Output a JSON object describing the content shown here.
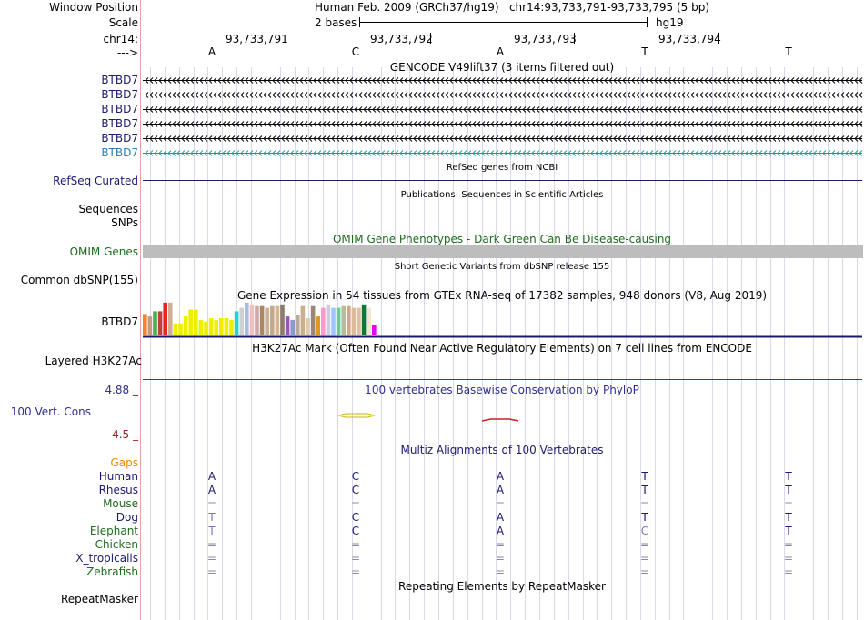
{
  "header": {
    "window_position_label": "Window Position",
    "window_position_value": "Human Feb. 2009 (GRCh37/hg19)   chr14:93,733,791-93,733,795 (5 bp)",
    "scale_label": "Scale",
    "scale_left": "2 bases",
    "scale_right": "hg19",
    "chrom_label": "chr14:",
    "coords": [
      "93,733,791",
      "93,733,792",
      "93,733,793",
      "93,733,794"
    ],
    "strand_label": "--->",
    "bases": [
      "A",
      "C",
      "A",
      "T",
      "T"
    ]
  },
  "gencode": {
    "title": "GENCODE V49lift37 (3 items filtered out)",
    "tracks": [
      "BTBD7",
      "BTBD7",
      "BTBD7",
      "BTBD7",
      "BTBD7",
      "BTBD7"
    ],
    "color_main": "#1b1b70",
    "color_last": "#2c7fb8"
  },
  "refseq": {
    "title": "RefSeq genes from NCBI",
    "label": "RefSeq Curated"
  },
  "publications": {
    "title": "Publications: Sequences in Scientific Articles",
    "label_sequences": "Sequences",
    "label_snps": "SNPs"
  },
  "omim": {
    "title": "OMIM Gene Phenotypes - Dark Green Can Be Disease-causing",
    "label": "OMIM Genes",
    "color": "#1f6b1f"
  },
  "dbsnp": {
    "title": "Short Genetic Variants from dbSNP release 155",
    "label": "Common dbSNP(155)"
  },
  "gtex": {
    "title": "Gene Expression in 54 tissues from GTEx RNA-seq of 17382 samples, 948 donors (V8, Aug 2019)",
    "label": "BTBD7",
    "bars": [
      {
        "v": 0.62,
        "c": "#ff7f2a"
      },
      {
        "v": 0.55,
        "c": "#c79a7a"
      },
      {
        "v": 0.7,
        "c": "#4daf4a"
      },
      {
        "v": 0.7,
        "c": "#c04040"
      },
      {
        "v": 0.95,
        "c": "#ee2222"
      },
      {
        "v": 0.95,
        "c": "#ccb093"
      },
      {
        "v": 0.35,
        "c": "#eeee00"
      },
      {
        "v": 0.35,
        "c": "#eeee00"
      },
      {
        "v": 0.55,
        "c": "#eeee00"
      },
      {
        "v": 0.75,
        "c": "#eeee00"
      },
      {
        "v": 0.75,
        "c": "#eeee00"
      },
      {
        "v": 0.45,
        "c": "#eeee00"
      },
      {
        "v": 0.4,
        "c": "#eeee00"
      },
      {
        "v": 0.5,
        "c": "#eeee00"
      },
      {
        "v": 0.45,
        "c": "#eeee00"
      },
      {
        "v": 0.5,
        "c": "#eeee00"
      },
      {
        "v": 0.5,
        "c": "#eeee00"
      },
      {
        "v": 0.45,
        "c": "#eeee00"
      },
      {
        "v": 0.7,
        "c": "#22d3d3"
      },
      {
        "v": 0.8,
        "c": "#d0d0d0"
      },
      {
        "v": 0.95,
        "c": "#aabbdd"
      },
      {
        "v": 0.9,
        "c": "#f0c0c0"
      },
      {
        "v": 0.85,
        "c": "#ccaaaa"
      },
      {
        "v": 0.85,
        "c": "#aa8866"
      },
      {
        "v": 0.8,
        "c": "#ccb093"
      },
      {
        "v": 0.85,
        "c": "#c2a98f"
      },
      {
        "v": 0.85,
        "c": "#d9b48f"
      },
      {
        "v": 0.9,
        "c": "#8b7d6b"
      },
      {
        "v": 0.55,
        "c": "#9955bb"
      },
      {
        "v": 0.45,
        "c": "#8899cc"
      },
      {
        "v": 0.6,
        "c": "#bbaa99"
      },
      {
        "v": 0.85,
        "c": "#c9b08a"
      },
      {
        "v": 0.5,
        "c": "#e0c8b0"
      },
      {
        "v": 0.85,
        "c": "#998877"
      },
      {
        "v": 0.55,
        "c": "#dd9922"
      },
      {
        "v": 0.8,
        "c": "#ff99cc"
      },
      {
        "v": 0.9,
        "c": "#ccccdd"
      },
      {
        "v": 0.8,
        "c": "#a0c4ff"
      },
      {
        "v": 0.8,
        "c": "#66cc99"
      },
      {
        "v": 0.85,
        "c": "#bbbb99"
      },
      {
        "v": 0.85,
        "c": "#ccaa88"
      },
      {
        "v": 0.8,
        "c": "#ddbb99"
      },
      {
        "v": 0.8,
        "c": "#d9c2a6"
      },
      {
        "v": 0.9,
        "c": "#117733"
      },
      {
        "v": 0.8,
        "c": "#f4e4d4"
      },
      {
        "v": 0.3,
        "c": "#ee00ee"
      }
    ]
  },
  "h3k27ac": {
    "title": "H3K27Ac Mark (Often Found Near Active Regulatory Elements) on 7 cell lines from ENCODE",
    "label": "Layered H3K27Ac"
  },
  "phylop": {
    "title": "100 vertebrates Basewise Conservation by PhyloP",
    "label": "100 Vert. Cons",
    "max_label": "4.88 _",
    "min_label": "-4.5 _",
    "color_pos": "#2f2f8f",
    "color_neg": "#a02020"
  },
  "multiz": {
    "title": "Multiz Alignments of 100 Vertebrates",
    "gaps_label": "Gaps",
    "species": [
      {
        "name": "Human",
        "color": "#1b1b70",
        "bases": [
          "A",
          "C",
          "A",
          "T",
          "T"
        ]
      },
      {
        "name": "Rhesus",
        "color": "#1b1b70",
        "bases": [
          "A",
          "C",
          "A",
          "T",
          "T"
        ]
      },
      {
        "name": "Mouse",
        "color": "#1f6b1f",
        "bases": [
          "=",
          "=",
          "=",
          "=",
          "="
        ]
      },
      {
        "name": "Dog",
        "color": "#1b1b70",
        "bases": [
          "T",
          "C",
          "A",
          "T",
          "T"
        ]
      },
      {
        "name": "Elephant",
        "color": "#1f6b1f",
        "bases": [
          "T",
          "C",
          "A",
          "C",
          "T"
        ]
      },
      {
        "name": "Chicken",
        "color": "#1f6b1f",
        "bases": [
          "=",
          "=",
          "=",
          "=",
          "="
        ]
      },
      {
        "name": "X_tropicalis",
        "color": "#1b1b70",
        "bases": [
          "=",
          "=",
          "=",
          "=",
          "="
        ]
      },
      {
        "name": "Zebrafish",
        "color": "#1f6b1f",
        "bases": [
          "=",
          "=",
          "=",
          "=",
          "="
        ]
      }
    ]
  },
  "repeatmasker": {
    "title": "Repeating Elements by RepeatMasker",
    "label": "RepeatMasker"
  }
}
